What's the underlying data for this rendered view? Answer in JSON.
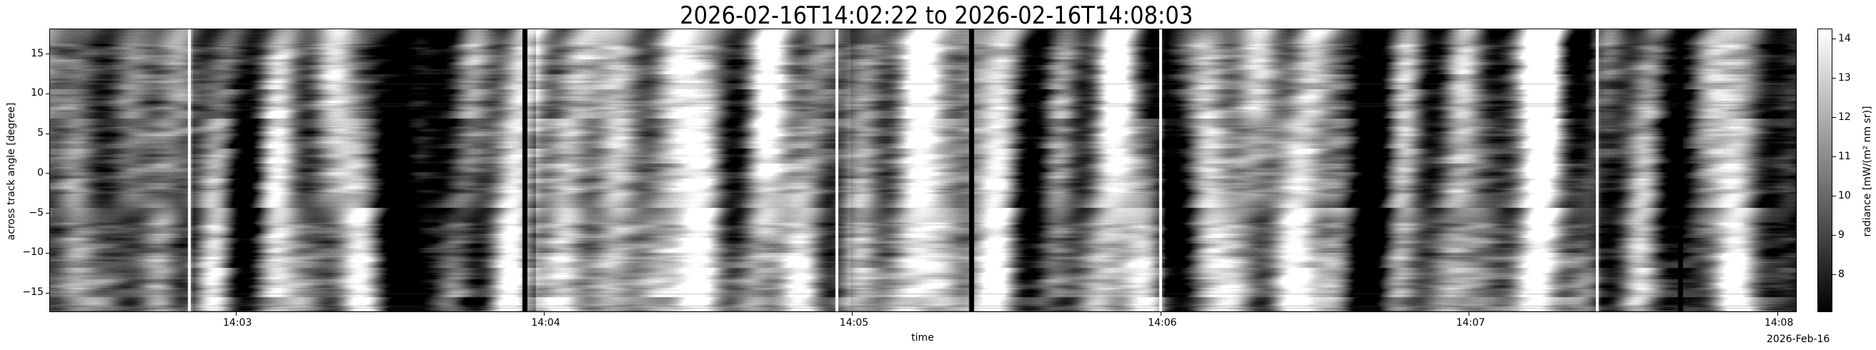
{
  "chart_data": {
    "type": "heatmap",
    "title": "2026-02-16T14:02:22 to 2026-02-16T14:08:03",
    "xlabel": "time",
    "ylabel": "across track angle [degree]",
    "x_date_label": "2026-Feb-16",
    "xlim": [
      "14:02:22",
      "14:08:03"
    ],
    "x_ticks": [
      "14:03",
      "14:04",
      "14:05",
      "14:06",
      "14:07",
      "14:08"
    ],
    "ylim": [
      -17.4,
      18.2
    ],
    "y_ticks": [
      "15",
      "10",
      "5",
      "0",
      "−5",
      "−10",
      "−15"
    ],
    "colormap": "gray",
    "colorbar": {
      "label": "radiance [mW/(m² nm sr)]",
      "range": [
        7.05,
        14.27
      ],
      "ticks": [
        "8",
        "9",
        "10",
        "11",
        "12",
        "13",
        "14"
      ]
    },
    "gaps": [
      {
        "time": "14:02:51",
        "color": "#ffffff"
      },
      {
        "time": "14:03:56",
        "color": "#000000"
      },
      {
        "time": "14:04:57",
        "color": "#ffffff"
      },
      {
        "time": "14:05:23",
        "color": "#000000"
      },
      {
        "time": "14:06:00",
        "color": "#ffffff"
      },
      {
        "time": "14:07:25",
        "color": "#ffffff"
      },
      {
        "time": "14:07:41",
        "color": "#000000"
      }
    ]
  }
}
